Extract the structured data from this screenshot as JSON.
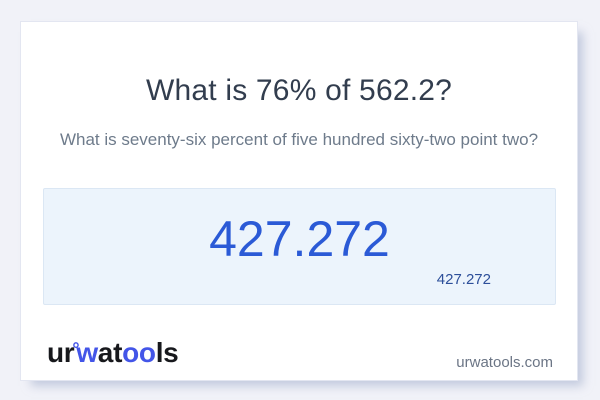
{
  "question": {
    "title": "What is 76% of 562.2?",
    "subtitle": "What is seventy-six percent of five hundred sixty-two point two?"
  },
  "result": {
    "primary": "427.272",
    "secondary": "427.272"
  },
  "branding": {
    "logo_text": "urwatools",
    "logo_segments": [
      {
        "text": "ur",
        "color": "dark"
      },
      {
        "text": "°",
        "color": "blue",
        "style": "ring"
      },
      {
        "text": "w",
        "color": "blue"
      },
      {
        "text": "at",
        "color": "dark"
      },
      {
        "text": "oo",
        "color": "blue"
      },
      {
        "text": "ls",
        "color": "dark"
      }
    ],
    "site_url": "urwatools.com"
  },
  "colors": {
    "page_bg": "#f1f2f8",
    "card_bg": "#ffffff",
    "result_box_bg": "#ecf4fc",
    "result_box_border": "#dbe7f4",
    "result_primary": "#2b5ad6",
    "result_secondary": "#2d4f9a",
    "title": "#323d4e",
    "subtitle": "#6e7b8b",
    "logo_blue": "#4355e8",
    "logo_dark": "#17181c",
    "url_gray": "#6b7585"
  }
}
